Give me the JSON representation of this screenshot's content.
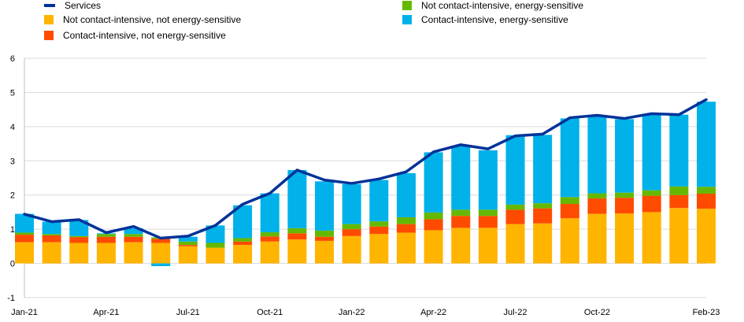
{
  "chart_data": {
    "type": "bar",
    "title": "",
    "xlabel": "",
    "ylabel": "",
    "ylim": [
      -1,
      6
    ],
    "yticks": [
      -1,
      0,
      1,
      2,
      3,
      4,
      5,
      6
    ],
    "x_tick_labels": [
      "Jan-21",
      "Apr-21",
      "Jul-21",
      "Oct-21",
      "Jan-22",
      "Apr-22",
      "Jul-22",
      "Oct-22",
      "Feb-23"
    ],
    "grid": "horizontal",
    "legend_placement": "top",
    "categories": [
      "2021-01",
      "2021-02",
      "2021-03",
      "2021-04",
      "2021-05",
      "2021-06",
      "2021-07",
      "2021-08",
      "2021-09",
      "2021-10",
      "2021-11",
      "2021-12",
      "2022-01",
      "2022-02",
      "2022-03",
      "2022-04",
      "2022-05",
      "2022-06",
      "2022-07",
      "2022-08",
      "2022-09",
      "2022-10",
      "2022-11",
      "2022-12",
      "2023-01",
      "2023-02"
    ],
    "series": [
      {
        "name": "Not contact-intensive, not energy-sensitive",
        "kind": "bar",
        "color": "#FFB400",
        "values": [
          0.62,
          0.62,
          0.6,
          0.6,
          0.62,
          0.6,
          0.5,
          0.46,
          0.54,
          0.64,
          0.7,
          0.66,
          0.8,
          0.86,
          0.9,
          0.97,
          1.04,
          1.04,
          1.15,
          1.17,
          1.32,
          1.45,
          1.46,
          1.5,
          1.62,
          1.6
        ]
      },
      {
        "name": "Contact-intensive, not energy-sensitive",
        "kind": "bar",
        "color": "#FF4B00",
        "values": [
          0.22,
          0.2,
          0.17,
          0.18,
          0.16,
          0.12,
          0.04,
          0.0,
          0.1,
          0.15,
          0.18,
          0.12,
          0.2,
          0.22,
          0.25,
          0.32,
          0.35,
          0.35,
          0.42,
          0.44,
          0.42,
          0.45,
          0.46,
          0.48,
          0.38,
          0.44
        ]
      },
      {
        "name": "Not contact-intensive, energy-sensitive",
        "kind": "bar",
        "color": "#65B800",
        "values": [
          0.06,
          0.04,
          0.03,
          0.08,
          0.08,
          0.04,
          0.1,
          0.14,
          0.1,
          0.12,
          0.15,
          0.18,
          0.15,
          0.15,
          0.2,
          0.2,
          0.18,
          0.18,
          0.15,
          0.15,
          0.2,
          0.15,
          0.15,
          0.16,
          0.25,
          0.2
        ]
      },
      {
        "name": "Contact-intensive, energy-sensitive",
        "kind": "bar",
        "color": "#00B1EA",
        "values": [
          0.55,
          0.36,
          0.47,
          0.02,
          0.17,
          -0.08,
          0.14,
          0.51,
          0.96,
          1.14,
          1.7,
          1.44,
          1.17,
          1.21,
          1.29,
          1.76,
          1.87,
          1.74,
          2.03,
          2.0,
          2.3,
          2.28,
          2.15,
          2.23,
          2.1,
          2.49
        ]
      },
      {
        "name": "Services",
        "kind": "line",
        "color": "#003299",
        "values": [
          1.44,
          1.22,
          1.28,
          0.9,
          1.08,
          0.74,
          0.8,
          1.11,
          1.73,
          2.05,
          2.73,
          2.44,
          2.34,
          2.47,
          2.68,
          3.26,
          3.47,
          3.35,
          3.73,
          3.78,
          4.26,
          4.33,
          4.24,
          4.38,
          4.35,
          4.79
        ]
      }
    ]
  },
  "legend": {
    "services": "Services",
    "not_ci_not_es": "Not contact-intensive, not energy-sensitive",
    "ci_not_es": "Contact-intensive, not energy-sensitive",
    "not_ci_es": "Not contact-intensive, energy-sensitive",
    "ci_es": "Contact-intensive, energy-sensitive"
  },
  "colors": {
    "services": "#003299",
    "not_ci_not_es": "#FFB400",
    "ci_not_es": "#FF4B00",
    "not_ci_es": "#65B800",
    "ci_es": "#00B1EA"
  }
}
